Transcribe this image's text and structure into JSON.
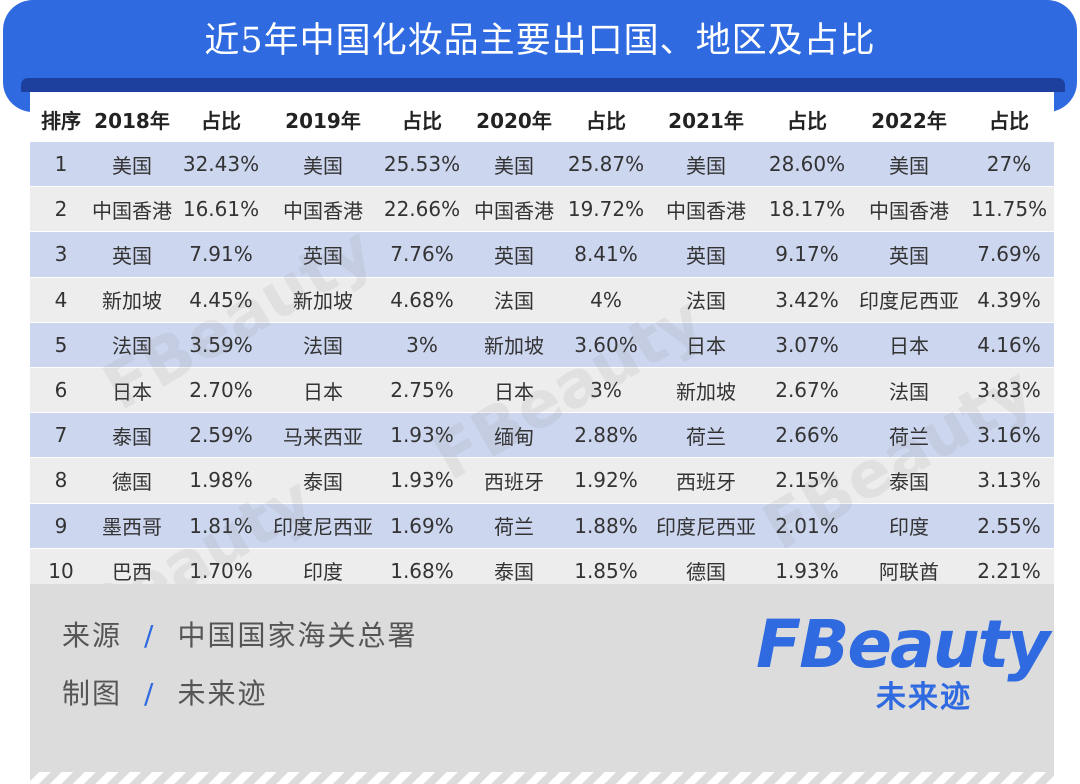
{
  "title": "近5年中国化妆品主要出口国、地区及占比",
  "table": {
    "headers": [
      "排序",
      "2018年",
      "占比",
      "2019年",
      "占比",
      "2020年",
      "占比",
      "2021年",
      "占比",
      "2022年",
      "占比"
    ],
    "rows": [
      [
        "1",
        "美国",
        "32.43%",
        "美国",
        "25.53%",
        "美国",
        "25.87%",
        "美国",
        "28.60%",
        "美国",
        "27%"
      ],
      [
        "2",
        "中国香港",
        "16.61%",
        "中国香港",
        "22.66%",
        "中国香港",
        "19.72%",
        "中国香港",
        "18.17%",
        "中国香港",
        "11.75%"
      ],
      [
        "3",
        "英国",
        "7.91%",
        "英国",
        "7.76%",
        "英国",
        "8.41%",
        "英国",
        "9.17%",
        "英国",
        "7.69%"
      ],
      [
        "4",
        "新加坡",
        "4.45%",
        "新加坡",
        "4.68%",
        "法国",
        "4%",
        "法国",
        "3.42%",
        "印度尼西亚",
        "4.39%"
      ],
      [
        "5",
        "法国",
        "3.59%",
        "法国",
        "3%",
        "新加坡",
        "3.60%",
        "日本",
        "3.07%",
        "日本",
        "4.16%"
      ],
      [
        "6",
        "日本",
        "2.70%",
        "日本",
        "2.75%",
        "日本",
        "3%",
        "新加坡",
        "2.67%",
        "法国",
        "3.83%"
      ],
      [
        "7",
        "泰国",
        "2.59%",
        "马来西亚",
        "1.93%",
        "缅甸",
        "2.88%",
        "荷兰",
        "2.66%",
        "荷兰",
        "3.16%"
      ],
      [
        "8",
        "德国",
        "1.98%",
        "泰国",
        "1.93%",
        "西班牙",
        "1.92%",
        "西班牙",
        "2.15%",
        "泰国",
        "3.13%"
      ],
      [
        "9",
        "墨西哥",
        "1.81%",
        "印度尼西亚",
        "1.69%",
        "荷兰",
        "1.88%",
        "印度尼西亚",
        "2.01%",
        "印度",
        "2.55%"
      ],
      [
        "10",
        "巴西",
        "1.70%",
        "印度",
        "1.68%",
        "泰国",
        "1.85%",
        "德国",
        "1.93%",
        "阿联酋",
        "2.21%"
      ]
    ]
  },
  "footer": {
    "source_label": "来源",
    "source_value": "中国国家海关总署",
    "made_label": "制图",
    "made_value": "未来迹",
    "separator": "/"
  },
  "logo": {
    "word": "FBeauty",
    "sub": "未来迹"
  },
  "colors": {
    "accent": "#2f6ae0",
    "header_band": "#1d3f9e",
    "row_odd": "#cdd6ef",
    "row_even": "#ededed",
    "footer_bg": "#dcdcdc"
  }
}
